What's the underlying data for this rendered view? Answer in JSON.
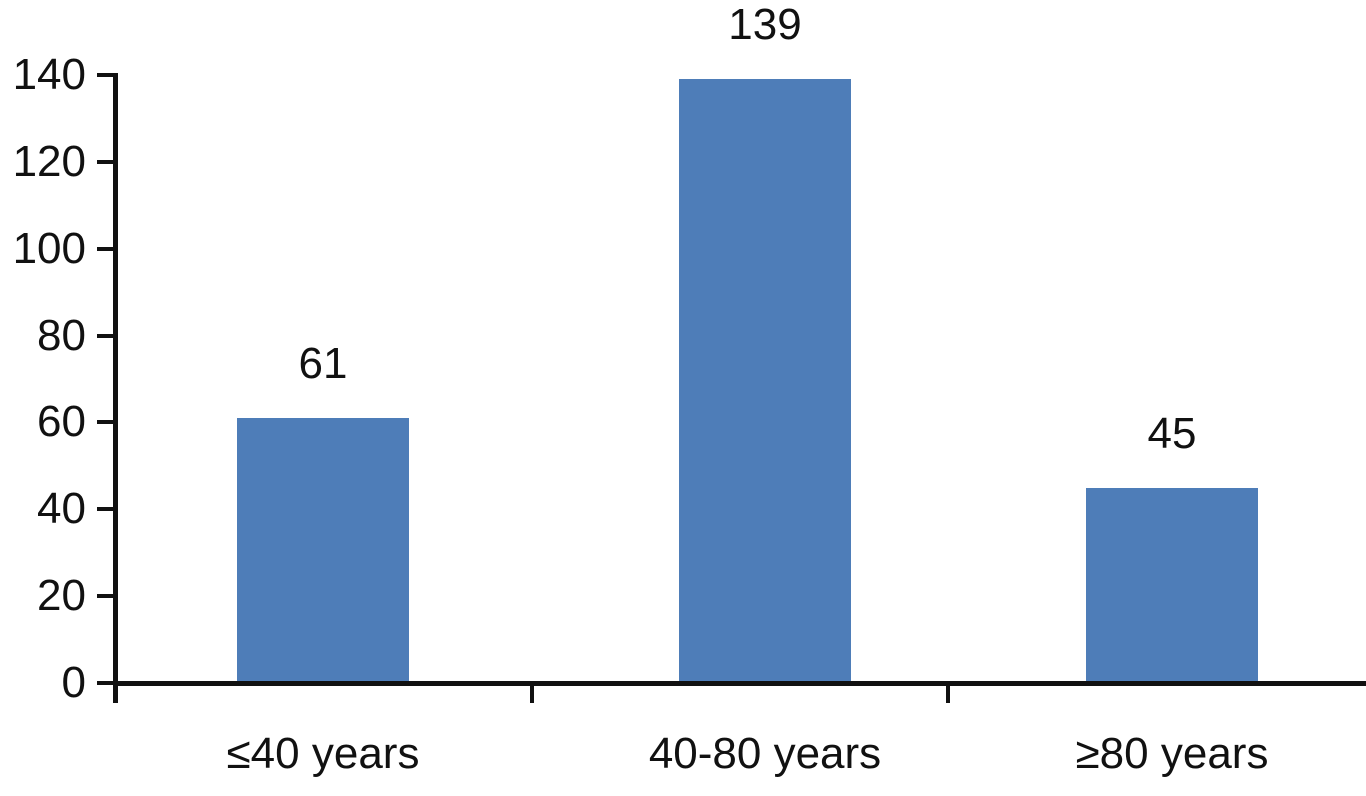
{
  "chart_data": {
    "type": "bar",
    "categories": [
      "≤40 years",
      "40-80 years",
      "≥80 years"
    ],
    "values": [
      61,
      139,
      45
    ],
    "data_labels": [
      "61",
      "139",
      "45"
    ],
    "yticks": [
      0,
      20,
      40,
      60,
      80,
      100,
      120,
      140
    ],
    "ylim": [
      0,
      140
    ],
    "xlabel": "",
    "ylabel": "",
    "grid": false,
    "legend": "none",
    "bar_color": "#4e7db8",
    "axis_color": "#111111",
    "text_color": "#111111",
    "background": "#ffffff"
  }
}
